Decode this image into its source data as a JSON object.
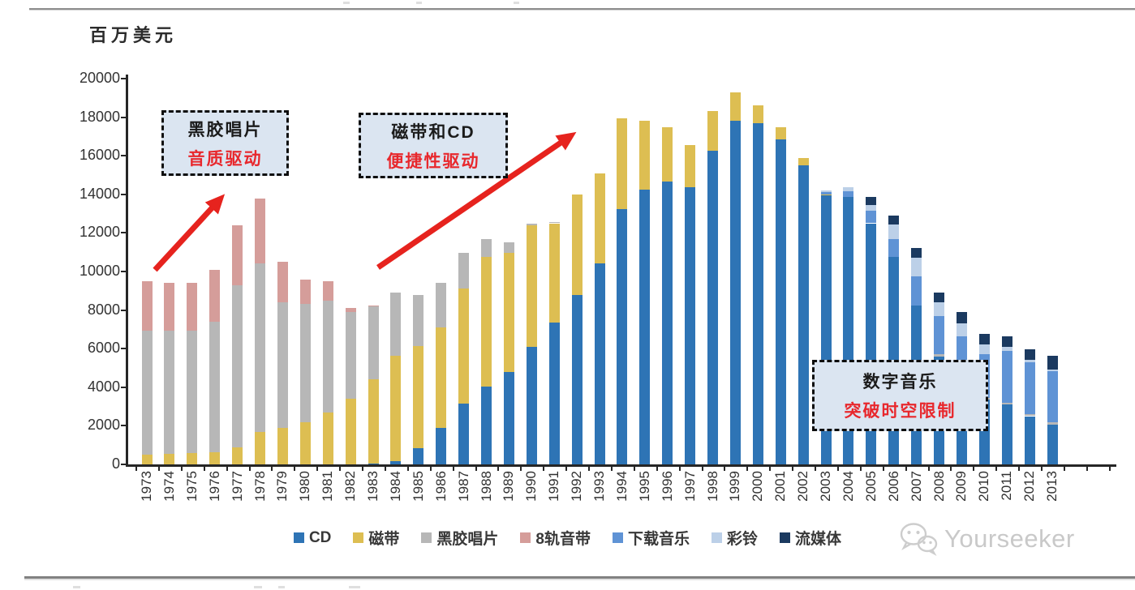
{
  "unit_label": "百万美元",
  "watermark": {
    "brand": "Yourseeker",
    "icon": "wechat-icon"
  },
  "annotations": [
    {
      "id": "vinyl-era",
      "line1": "黑胶唱片",
      "line2": "音质驱动"
    },
    {
      "id": "tape-cd-era",
      "line1": "磁带和CD",
      "line2": "便捷性驱动"
    },
    {
      "id": "digital-era",
      "line1": "数字音乐",
      "line2": "突破时空限制"
    }
  ],
  "colors": {
    "accent_red": "#e6231e",
    "annotation_fill": "#dbe5f1",
    "annotation_red_text": "#e8282d",
    "axis": "#262626"
  },
  "chart_data": {
    "type": "bar",
    "stacked": true,
    "title": "",
    "ylabel": "百万美元",
    "xlabel": "",
    "ylim": [
      0,
      20000
    ],
    "ytick_step": 2000,
    "grid": false,
    "legend_position": "bottom",
    "categories": [
      1973,
      1974,
      1975,
      1976,
      1977,
      1978,
      1979,
      1980,
      1981,
      1982,
      1983,
      1984,
      1985,
      1986,
      1987,
      1988,
      1989,
      1990,
      1991,
      1992,
      1993,
      1994,
      1995,
      1996,
      1997,
      1998,
      1999,
      2000,
      2001,
      2002,
      2003,
      2004,
      2005,
      2006,
      2007,
      2008,
      2009,
      2010,
      2011,
      2012,
      2013
    ],
    "series": [
      {
        "name": "CD",
        "color": "#2e74b5",
        "values": [
          0,
          0,
          0,
          0,
          0,
          0,
          0,
          0,
          0,
          0,
          50,
          150,
          850,
          1900,
          3150,
          4050,
          4800,
          6100,
          7350,
          8800,
          10400,
          13250,
          14250,
          14650,
          14350,
          16250,
          17800,
          17700,
          16850,
          15500,
          13950,
          13850,
          12500,
          10750,
          8250,
          5600,
          4300,
          3350,
          3100,
          2500,
          2050
        ]
      },
      {
        "name": "磁带",
        "color": "#ddbe52",
        "values": [
          500,
          550,
          600,
          650,
          900,
          1700,
          1900,
          2200,
          2700,
          3400,
          4350,
          5500,
          5300,
          5200,
          5950,
          6700,
          6150,
          6300,
          5150,
          5200,
          4700,
          4700,
          3550,
          2850,
          2200,
          2050,
          1500,
          900,
          650,
          400,
          50,
          0,
          0,
          0,
          0,
          0,
          0,
          0,
          0,
          0,
          0
        ]
      },
      {
        "name": "黑胶唱片",
        "color": "#b7b7b7",
        "values": [
          6450,
          6400,
          6350,
          6750,
          8400,
          8700,
          6500,
          6100,
          5800,
          4500,
          3800,
          3250,
          2650,
          2300,
          1850,
          950,
          550,
          100,
          50,
          0,
          0,
          0,
          0,
          0,
          0,
          0,
          0,
          0,
          0,
          0,
          0,
          0,
          0,
          0,
          0,
          100,
          80,
          80,
          100,
          100,
          150
        ]
      },
      {
        "name": "8轨音带",
        "color": "#d59d9a",
        "values": [
          2550,
          2450,
          2450,
          2700,
          3100,
          3400,
          2100,
          1300,
          1000,
          200,
          50,
          0,
          0,
          0,
          0,
          0,
          0,
          0,
          0,
          0,
          0,
          0,
          0,
          0,
          0,
          0,
          0,
          0,
          0,
          0,
          0,
          0,
          0,
          0,
          0,
          0,
          0,
          0,
          0,
          0,
          0
        ]
      },
      {
        "name": "下载音乐",
        "color": "#5f93d5",
        "values": [
          0,
          0,
          0,
          0,
          0,
          0,
          0,
          0,
          0,
          0,
          0,
          0,
          0,
          0,
          0,
          0,
          0,
          0,
          0,
          0,
          0,
          0,
          0,
          0,
          0,
          0,
          0,
          0,
          0,
          0,
          100,
          300,
          650,
          950,
          1500,
          2000,
          2250,
          2300,
          2700,
          2700,
          2650
        ]
      },
      {
        "name": "彩铃",
        "color": "#bcd0e8",
        "values": [
          0,
          0,
          0,
          0,
          0,
          0,
          0,
          0,
          0,
          0,
          0,
          0,
          0,
          0,
          0,
          0,
          0,
          0,
          0,
          0,
          0,
          0,
          0,
          0,
          0,
          0,
          0,
          0,
          0,
          0,
          100,
          200,
          300,
          750,
          950,
          700,
          700,
          500,
          200,
          100,
          50
        ]
      },
      {
        "name": "流媒体",
        "color": "#1b3a60",
        "values": [
          0,
          0,
          0,
          0,
          0,
          0,
          0,
          0,
          0,
          0,
          0,
          0,
          0,
          0,
          0,
          0,
          0,
          0,
          0,
          0,
          0,
          0,
          0,
          0,
          0,
          0,
          0,
          0,
          0,
          0,
          0,
          0,
          400,
          450,
          500,
          500,
          550,
          520,
          550,
          550,
          750
        ]
      }
    ]
  }
}
